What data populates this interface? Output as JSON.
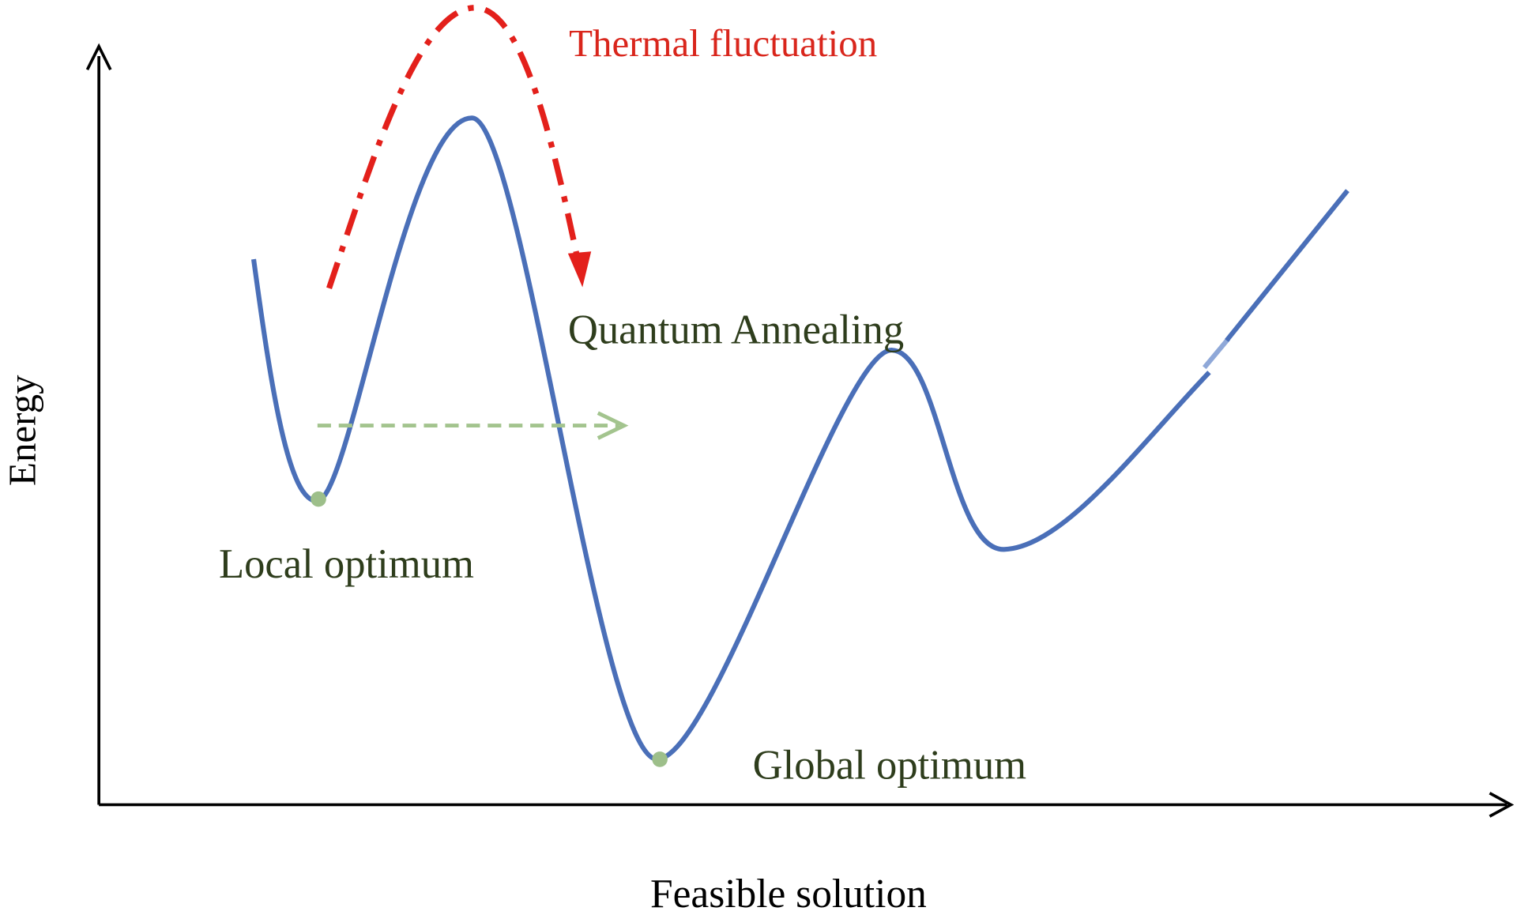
{
  "axes": {
    "x_label": "Feasible solution",
    "y_label": "Energy"
  },
  "annotations": {
    "thermal": "Thermal fluctuation",
    "quantum": "Quantum Annealing",
    "local": "Local optimum",
    "global": "Global optimum"
  }
}
